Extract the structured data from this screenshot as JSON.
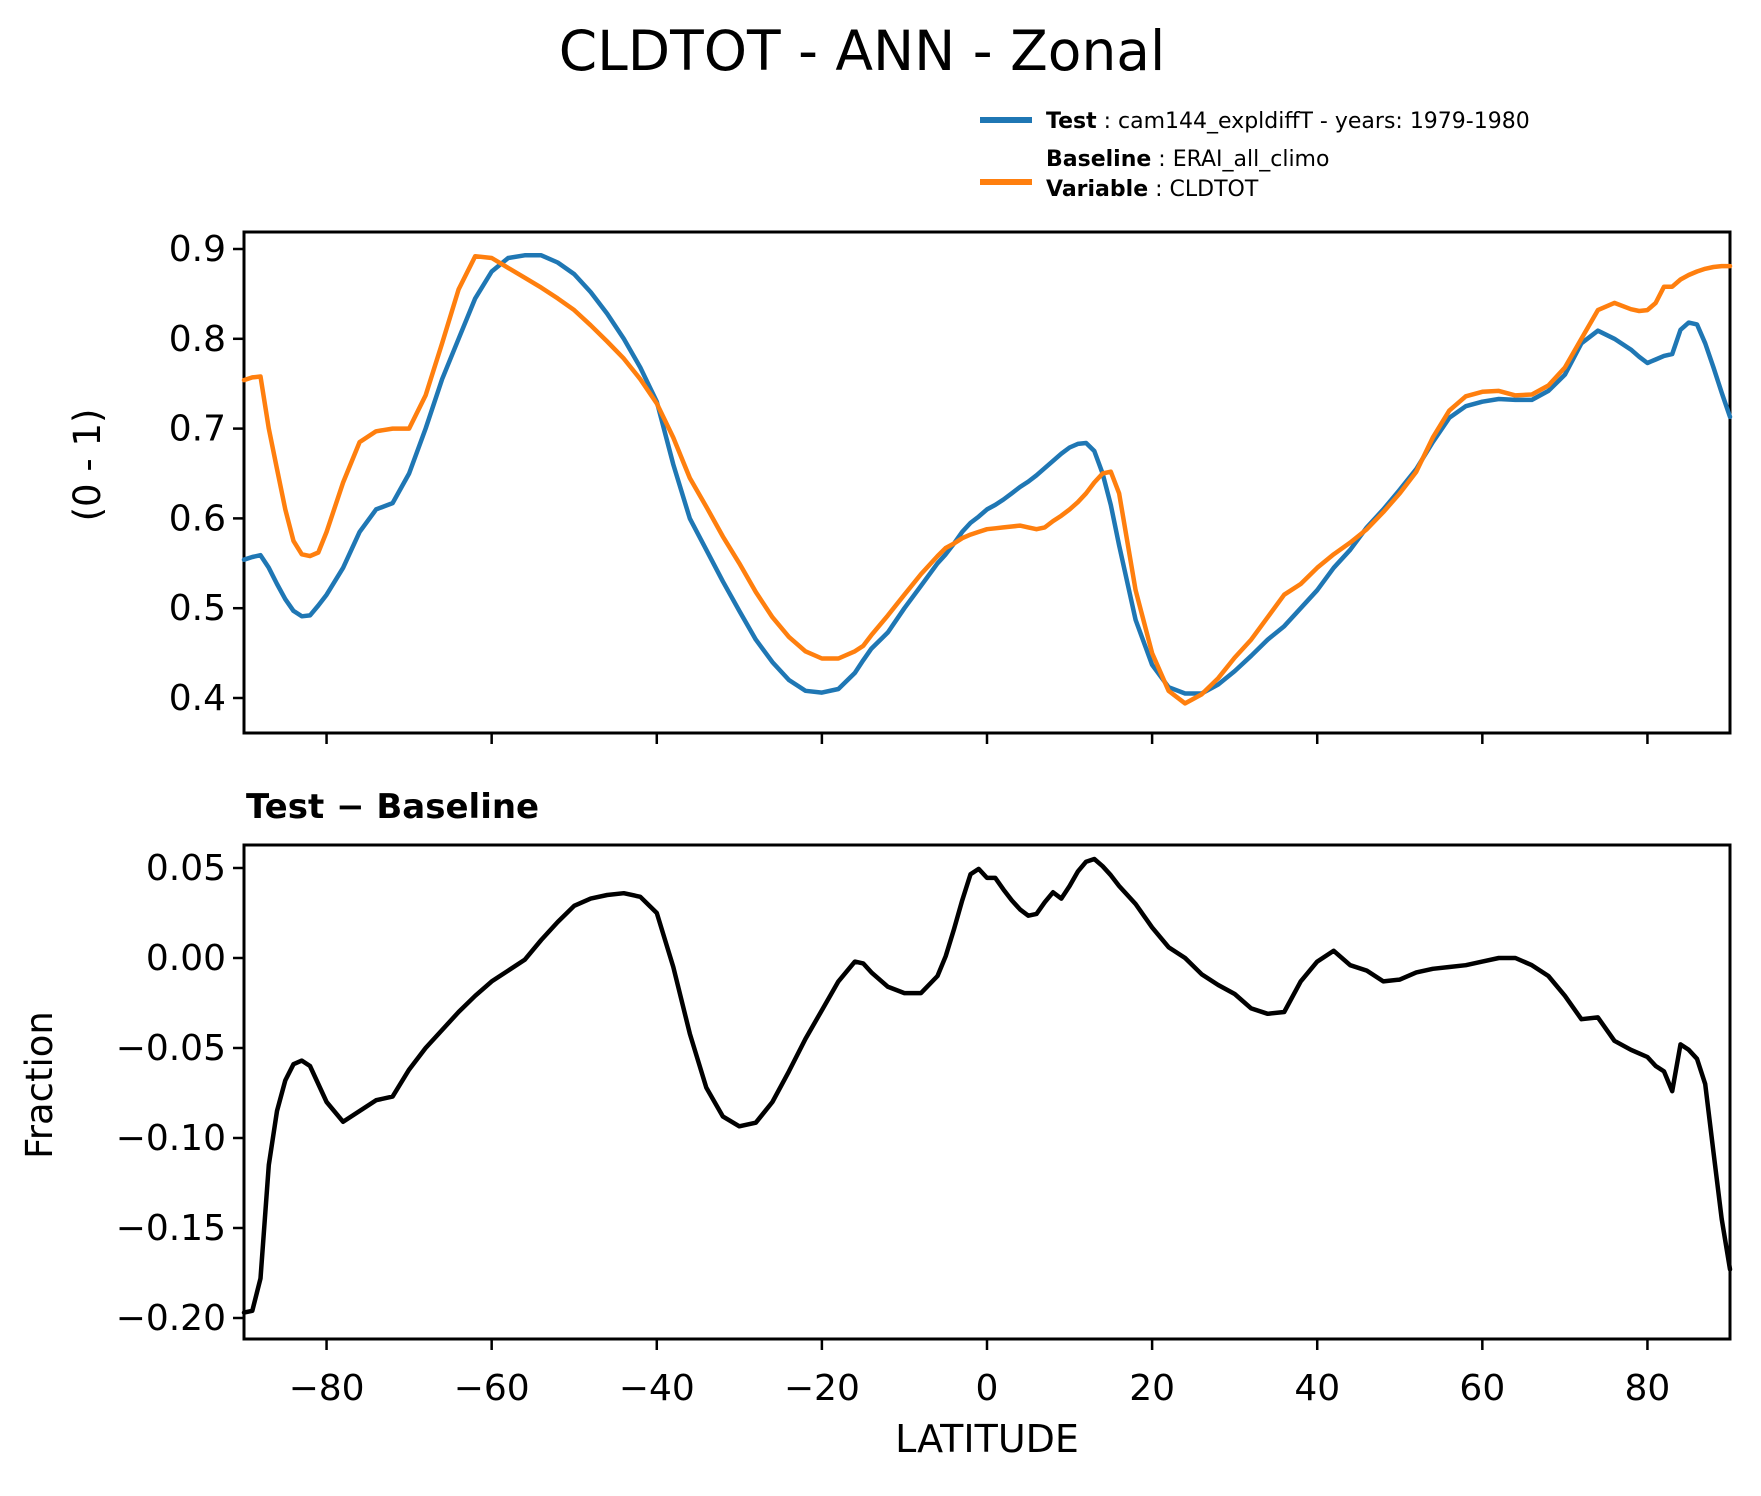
{
  "chart_data": {
    "type": "line",
    "title": "CLDTOT - ANN - Zonal",
    "xlabel": "LATITUDE",
    "xlim": [
      -90,
      90
    ],
    "xticks": [
      -80,
      -60,
      -40,
      -20,
      0,
      20,
      40,
      60,
      80
    ],
    "xticklabels": [
      "−80",
      "−60",
      "−40",
      "−20",
      "0",
      "20",
      "40",
      "60",
      "80"
    ],
    "legend": {
      "test": {
        "bold": "Test",
        "rest": " : cam144_expldiffT - years: 1979-1980",
        "color": "#1f77b4"
      },
      "baseline": {
        "bold": "Baseline",
        "rest": " : ERAI_all_climo",
        "color": "#ff7f0e"
      },
      "variable": {
        "bold": "Variable",
        "rest": " : CLDTOT"
      }
    },
    "x": [
      -90,
      -89,
      -88,
      -87,
      -86,
      -85,
      -84,
      -83,
      -82,
      -81,
      -80,
      -78,
      -76,
      -74,
      -72,
      -70,
      -68,
      -66,
      -64,
      -62,
      -60,
      -58,
      -56,
      -54,
      -52,
      -50,
      -48,
      -46,
      -44,
      -42,
      -40,
      -38,
      -36,
      -34,
      -32,
      -30,
      -28,
      -26,
      -24,
      -22,
      -20,
      -18,
      -16,
      -15,
      -14,
      -12,
      -10,
      -8,
      -6,
      -5,
      -4,
      -3,
      -2,
      -1,
      0,
      1,
      2,
      3,
      4,
      5,
      6,
      7,
      8,
      9,
      10,
      11,
      12,
      13,
      14,
      15,
      16,
      18,
      20,
      22,
      24,
      26,
      28,
      30,
      32,
      34,
      36,
      38,
      40,
      42,
      44,
      46,
      48,
      50,
      52,
      54,
      56,
      58,
      60,
      62,
      64,
      66,
      68,
      70,
      72,
      74,
      76,
      78,
      79,
      80,
      81,
      82,
      83,
      84,
      85,
      86,
      87,
      88,
      89,
      90
    ],
    "top_panel": {
      "ylabel": "(0 - 1)",
      "ylim": [
        0.361,
        0.919
      ],
      "yticks": [
        0.9,
        0.8,
        0.7,
        0.6,
        0.5,
        0.4
      ],
      "yticklabels": [
        "0.9",
        "0.8",
        "0.7",
        "0.6",
        "0.5",
        "0.4"
      ],
      "series": [
        {
          "name": "Test",
          "color": "#1f77b4",
          "values": [
            0.554,
            0.557,
            0.559,
            0.545,
            0.527,
            0.51,
            0.497,
            0.491,
            0.492,
            0.503,
            0.515,
            0.545,
            0.585,
            0.61,
            0.617,
            0.65,
            0.7,
            0.755,
            0.8,
            0.845,
            0.875,
            0.89,
            0.893,
            0.893,
            0.885,
            0.872,
            0.852,
            0.828,
            0.8,
            0.768,
            0.73,
            0.66,
            0.6,
            0.565,
            0.53,
            0.497,
            0.465,
            0.44,
            0.42,
            0.408,
            0.406,
            0.41,
            0.428,
            0.442,
            0.455,
            0.473,
            0.5,
            0.525,
            0.55,
            0.56,
            0.572,
            0.585,
            0.595,
            0.602,
            0.61,
            0.615,
            0.621,
            0.628,
            0.635,
            0.641,
            0.648,
            0.656,
            0.664,
            0.672,
            0.679,
            0.683,
            0.684,
            0.675,
            0.65,
            0.615,
            0.57,
            0.487,
            0.437,
            0.412,
            0.405,
            0.405,
            0.415,
            0.43,
            0.447,
            0.465,
            0.48,
            0.5,
            0.52,
            0.545,
            0.565,
            0.59,
            0.61,
            0.632,
            0.655,
            0.685,
            0.712,
            0.725,
            0.73,
            0.733,
            0.732,
            0.732,
            0.742,
            0.76,
            0.795,
            0.809,
            0.8,
            0.788,
            0.78,
            0.773,
            0.777,
            0.781,
            0.783,
            0.81,
            0.818,
            0.816,
            0.795,
            0.768,
            0.74,
            0.713
          ]
        },
        {
          "name": "Baseline",
          "color": "#ff7f0e",
          "values": [
            0.754,
            0.757,
            0.758,
            0.7,
            0.655,
            0.61,
            0.575,
            0.56,
            0.558,
            0.562,
            0.585,
            0.64,
            0.685,
            0.697,
            0.7,
            0.7,
            0.737,
            0.795,
            0.855,
            0.892,
            0.89,
            0.879,
            0.868,
            0.857,
            0.845,
            0.832,
            0.815,
            0.797,
            0.778,
            0.755,
            0.728,
            0.69,
            0.645,
            0.613,
            0.58,
            0.55,
            0.518,
            0.49,
            0.468,
            0.452,
            0.444,
            0.444,
            0.452,
            0.458,
            0.47,
            0.492,
            0.515,
            0.538,
            0.558,
            0.567,
            0.572,
            0.578,
            0.582,
            0.585,
            0.588,
            0.589,
            0.59,
            0.591,
            0.592,
            0.59,
            0.588,
            0.59,
            0.597,
            0.603,
            0.61,
            0.618,
            0.628,
            0.64,
            0.65,
            0.652,
            0.628,
            0.52,
            0.45,
            0.408,
            0.394,
            0.404,
            0.422,
            0.445,
            0.465,
            0.49,
            0.515,
            0.527,
            0.545,
            0.56,
            0.573,
            0.588,
            0.607,
            0.628,
            0.652,
            0.69,
            0.72,
            0.736,
            0.741,
            0.742,
            0.737,
            0.738,
            0.748,
            0.768,
            0.8,
            0.832,
            0.84,
            0.833,
            0.831,
            0.832,
            0.84,
            0.858,
            0.858,
            0.866,
            0.871,
            0.875,
            0.878,
            0.88,
            0.881,
            0.881
          ]
        }
      ]
    },
    "bottom_panel": {
      "subtitle": "Test − Baseline",
      "ylabel": "Fraction",
      "ylim": [
        -0.2117,
        0.0628
      ],
      "yticks": [
        0.05,
        0.0,
        -0.05,
        -0.1,
        -0.15,
        -0.2
      ],
      "yticklabels": [
        "0.05",
        "0.00",
        "−0.05",
        "−0.10",
        "−0.15",
        "−0.20"
      ],
      "series": [
        {
          "name": "Test − Baseline",
          "color": "#000000",
          "values": [
            -0.197,
            -0.196,
            -0.178,
            -0.115,
            -0.085,
            -0.068,
            -0.059,
            -0.057,
            -0.06,
            -0.07,
            -0.08,
            -0.091,
            -0.085,
            -0.079,
            -0.077,
            -0.062,
            -0.05,
            -0.04,
            -0.03,
            -0.021,
            -0.013,
            -0.007,
            -0.001,
            0.01,
            0.02,
            0.029,
            0.033,
            0.035,
            0.036,
            0.034,
            0.025,
            -0.005,
            -0.042,
            -0.072,
            -0.088,
            -0.0935,
            -0.0915,
            -0.08,
            -0.063,
            -0.045,
            -0.029,
            -0.013,
            -0.002,
            -0.003,
            -0.008,
            -0.016,
            -0.0195,
            -0.0195,
            -0.01,
            0.001,
            0.016,
            0.032,
            0.0465,
            0.0495,
            0.0445,
            0.0445,
            0.038,
            0.032,
            0.027,
            0.0235,
            0.0245,
            0.031,
            0.0365,
            0.033,
            0.04,
            0.048,
            0.0535,
            0.055,
            0.051,
            0.046,
            0.04,
            0.03,
            0.017,
            0.006,
            0.0,
            -0.009,
            -0.015,
            -0.02,
            -0.028,
            -0.031,
            -0.03,
            -0.013,
            -0.002,
            0.004,
            -0.004,
            -0.007,
            -0.013,
            -0.012,
            -0.008,
            -0.006,
            -0.005,
            -0.004,
            -0.002,
            0.0,
            0.0,
            -0.004,
            -0.01,
            -0.021,
            -0.034,
            -0.033,
            -0.046,
            -0.051,
            -0.053,
            -0.055,
            -0.06,
            -0.063,
            -0.074,
            -0.048,
            -0.051,
            -0.056,
            -0.07,
            -0.108,
            -0.145,
            -0.173
          ]
        }
      ]
    }
  }
}
